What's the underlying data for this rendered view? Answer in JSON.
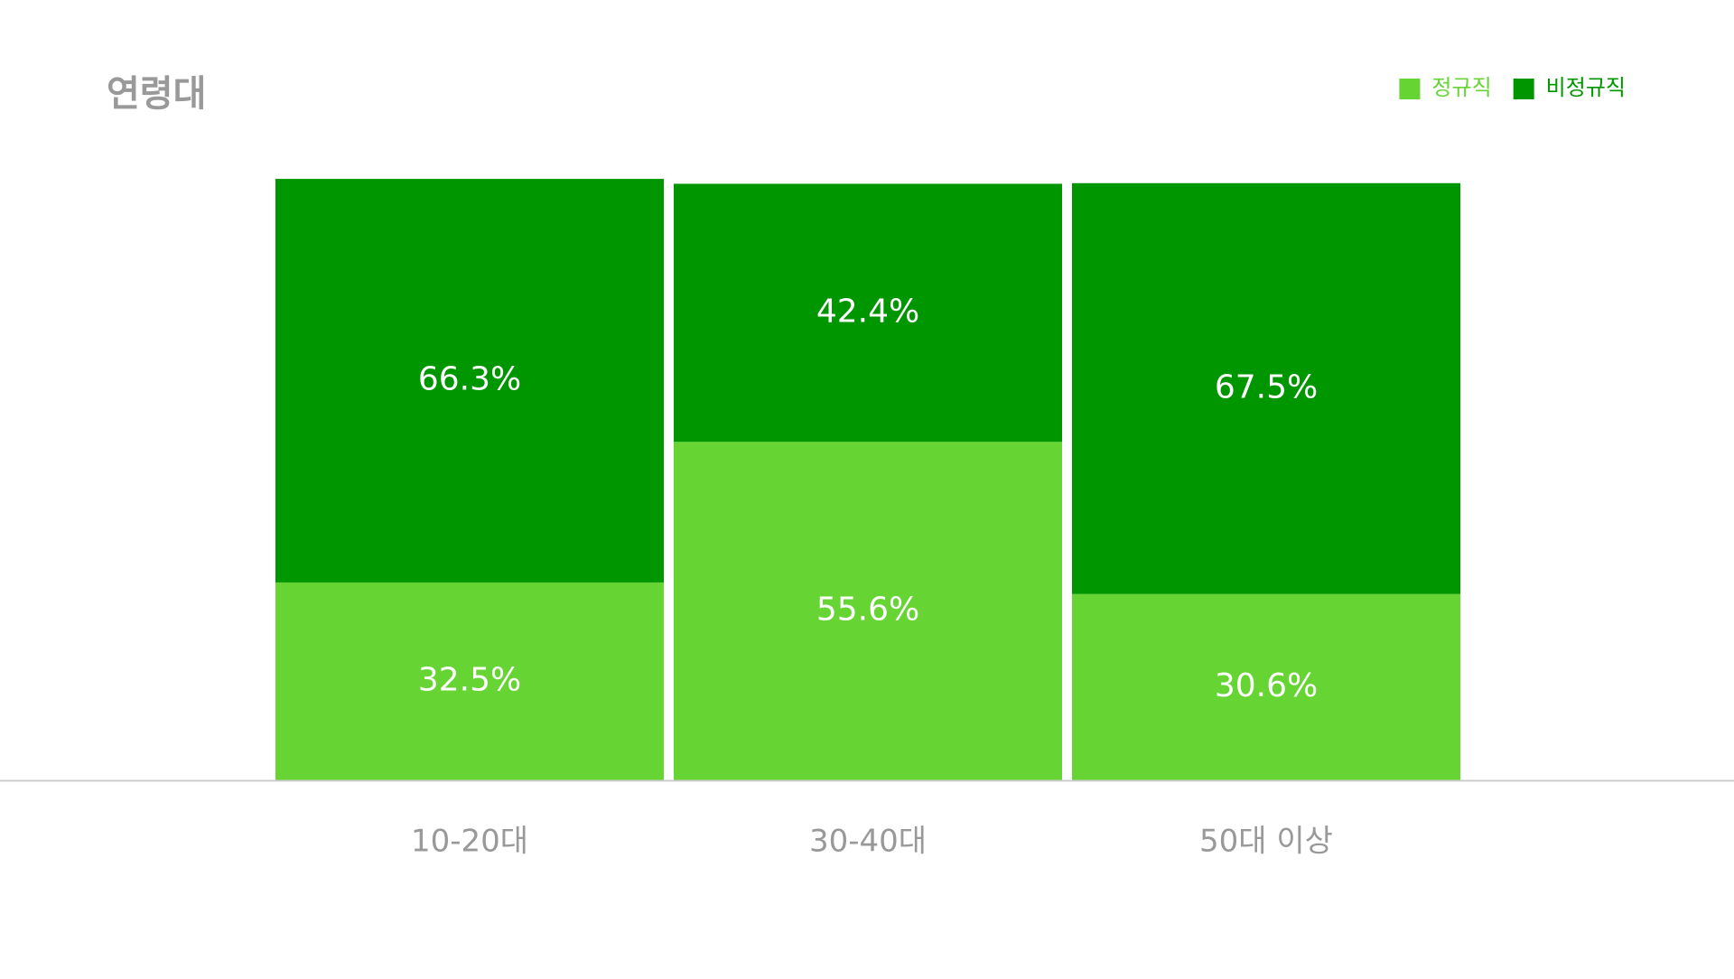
{
  "chart_data": {
    "type": "stacked-bar",
    "title": "연령대",
    "categories": [
      "10-20대",
      "30-40대",
      "50대 이상"
    ],
    "series": [
      {
        "name": "정규직",
        "color": "#66d433",
        "values": [
          32.5,
          55.6,
          30.6
        ],
        "value_labels": [
          "32.5%",
          "55.6%",
          "30.6%"
        ]
      },
      {
        "name": "비정규직",
        "color": "#009600",
        "values": [
          66.3,
          42.4,
          67.5
        ],
        "value_labels": [
          "66.3%",
          "42.4%",
          "67.5%"
        ]
      }
    ],
    "ylim": [
      0,
      100
    ],
    "legend": "top-right"
  }
}
